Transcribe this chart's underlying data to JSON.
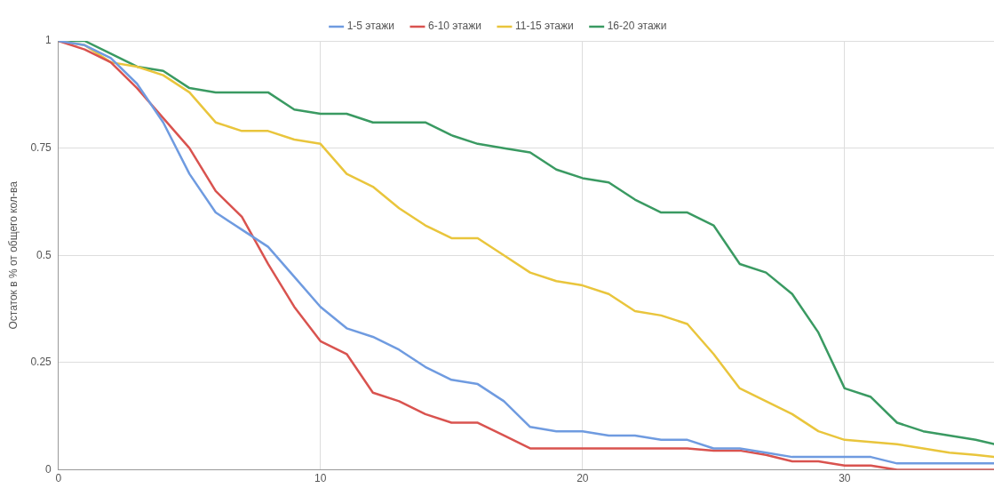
{
  "chart_data": {
    "type": "line",
    "ylabel": "Остаток в % от общего кол-ва",
    "x": [
      0,
      1,
      2,
      3,
      4,
      5,
      6,
      7,
      8,
      9,
      10,
      11,
      12,
      13,
      14,
      15,
      16,
      17,
      18,
      19,
      20,
      21,
      22,
      23,
      24,
      25,
      26,
      27,
      28,
      29,
      30,
      31,
      32,
      33,
      34,
      35,
      35.7
    ],
    "series": [
      {
        "name": "1-5 этажи",
        "color": "#6f9be0",
        "values": [
          1,
          0.99,
          0.96,
          0.9,
          0.81,
          0.69,
          0.6,
          0.56,
          0.52,
          0.45,
          0.38,
          0.33,
          0.31,
          0.28,
          0.24,
          0.21,
          0.2,
          0.16,
          0.1,
          0.09,
          0.09,
          0.08,
          0.08,
          0.07,
          0.07,
          0.05,
          0.05,
          0.04,
          0.03,
          0.03,
          0.03,
          0.03,
          0.015,
          0.015,
          0.015,
          0.015,
          0.015
        ]
      },
      {
        "name": "6-10 этажи",
        "color": "#d9534f",
        "values": [
          1,
          0.98,
          0.95,
          0.89,
          0.82,
          0.75,
          0.65,
          0.59,
          0.48,
          0.38,
          0.3,
          0.27,
          0.18,
          0.16,
          0.13,
          0.11,
          0.11,
          0.08,
          0.05,
          0.05,
          0.05,
          0.05,
          0.05,
          0.05,
          0.05,
          0.045,
          0.045,
          0.035,
          0.02,
          0.02,
          0.01,
          0.01,
          0,
          0,
          0,
          0,
          0
        ]
      },
      {
        "name": "11-15 этажи",
        "color": "#e9c53c",
        "values": [
          1,
          0.99,
          0.95,
          0.94,
          0.92,
          0.88,
          0.81,
          0.79,
          0.79,
          0.77,
          0.76,
          0.69,
          0.66,
          0.61,
          0.57,
          0.54,
          0.54,
          0.5,
          0.46,
          0.44,
          0.43,
          0.41,
          0.37,
          0.36,
          0.34,
          0.27,
          0.19,
          0.16,
          0.13,
          0.09,
          0.07,
          0.065,
          0.06,
          0.05,
          0.04,
          0.035,
          0.03
        ]
      },
      {
        "name": "16-20 этажи",
        "color": "#3a9a62",
        "values": [
          1,
          1,
          0.97,
          0.94,
          0.93,
          0.89,
          0.88,
          0.88,
          0.88,
          0.84,
          0.83,
          0.83,
          0.81,
          0.81,
          0.81,
          0.78,
          0.76,
          0.75,
          0.74,
          0.7,
          0.68,
          0.67,
          0.63,
          0.6,
          0.6,
          0.57,
          0.48,
          0.46,
          0.41,
          0.32,
          0.19,
          0.17,
          0.11,
          0.09,
          0.08,
          0.07,
          0.06
        ]
      }
    ],
    "xlim": [
      0,
      35.7
    ],
    "xticks": [
      0,
      10,
      20,
      30
    ],
    "ylim": [
      0,
      1
    ],
    "yticks": [
      0,
      0.25,
      0.5,
      0.75,
      1
    ],
    "grid": true,
    "legend": "top",
    "marker": "none",
    "line_style": "solid"
  }
}
